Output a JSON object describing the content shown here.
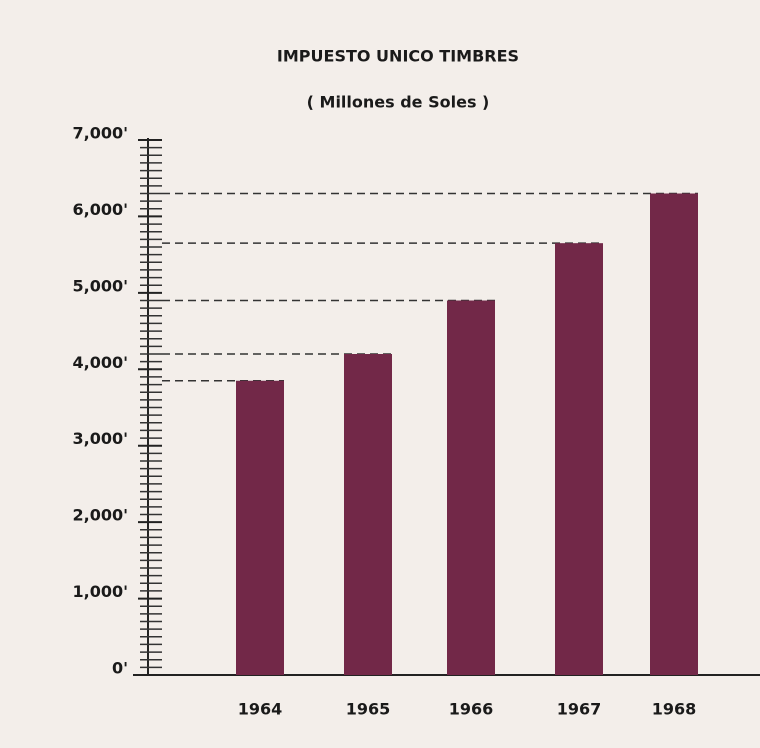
{
  "chart_data": {
    "type": "bar",
    "title": "IMPUESTO UNICO TIMBRES",
    "subtitle": "( Millones de Soles )",
    "categories": [
      "1964",
      "1965",
      "1966",
      "1967",
      "1968"
    ],
    "values": [
      3850,
      4200,
      4900,
      5650,
      6300
    ],
    "color": "#722848",
    "ylim": [
      0,
      7000
    ],
    "yticks": [
      {
        "value": 0,
        "label": "0'"
      },
      {
        "value": 1000,
        "label": "1,000'"
      },
      {
        "value": 2000,
        "label": "2,000'"
      },
      {
        "value": 3000,
        "label": "3,000'"
      },
      {
        "value": 4000,
        "label": "4,000'"
      },
      {
        "value": 5000,
        "label": "5,000'"
      },
      {
        "value": 6000,
        "label": "6,000'"
      },
      {
        "value": 7000,
        "label": "7,000'"
      }
    ]
  }
}
